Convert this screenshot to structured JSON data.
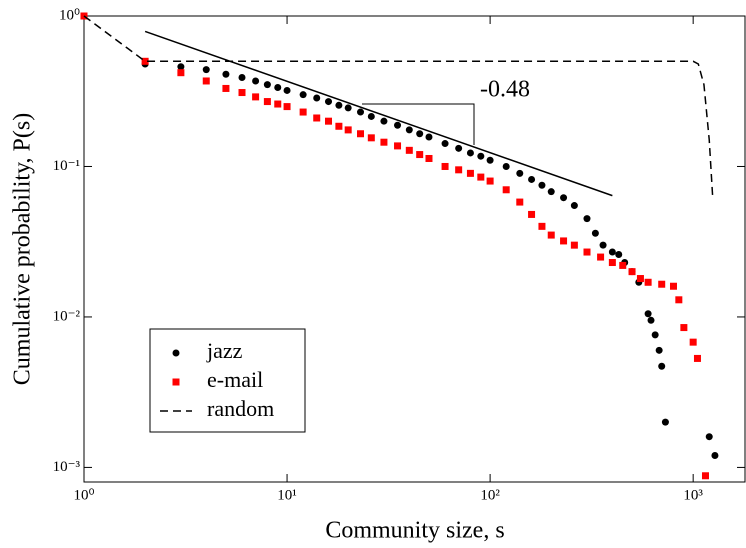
{
  "chart_data": {
    "type": "scatter",
    "xlabel": "Community size, s",
    "ylabel": "Cumulative probability, P(s)",
    "log_x": true,
    "log_y": true,
    "xlim": [
      1,
      1800
    ],
    "ylim": [
      0.0008,
      1
    ],
    "xticks": [
      {
        "value": 1,
        "label": "10⁰"
      },
      {
        "value": 10,
        "label": "10¹"
      },
      {
        "value": 100,
        "label": "10²"
      },
      {
        "value": 1000,
        "label": "10³"
      }
    ],
    "yticks": [
      {
        "value": 0.001,
        "label": "10⁻³"
      },
      {
        "value": 0.01,
        "label": "10⁻²"
      },
      {
        "value": 0.1,
        "label": "10⁻¹"
      },
      {
        "value": 1,
        "label": "10⁰"
      }
    ],
    "legend": "lower left",
    "series": [
      {
        "name": "jazz",
        "color": "#000000",
        "marker": "circle",
        "x": [
          1,
          2,
          3,
          4,
          5,
          6,
          7,
          8,
          9,
          10,
          12,
          14,
          16,
          18,
          20,
          23,
          26,
          30,
          35,
          40,
          45,
          50,
          60,
          70,
          80,
          90,
          100,
          120,
          140,
          160,
          180,
          200,
          230,
          260,
          300,
          330,
          360,
          400,
          430,
          460,
          500,
          540,
          600,
          620,
          650,
          680,
          700,
          730,
          1200,
          1280
        ],
        "values": [
          1,
          0.48,
          0.46,
          0.44,
          0.41,
          0.39,
          0.37,
          0.35,
          0.335,
          0.32,
          0.3,
          0.285,
          0.27,
          0.255,
          0.245,
          0.23,
          0.215,
          0.2,
          0.188,
          0.175,
          0.165,
          0.157,
          0.142,
          0.132,
          0.123,
          0.117,
          0.11,
          0.1,
          0.09,
          0.082,
          0.075,
          0.068,
          0.062,
          0.055,
          0.045,
          0.036,
          0.03,
          0.027,
          0.026,
          0.023,
          0.02,
          0.017,
          0.0105,
          0.0095,
          0.0076,
          0.006,
          0.0047,
          0.002,
          0.0016,
          0.0012
        ]
      },
      {
        "name": "e-mail",
        "color": "#ff0000",
        "marker": "square",
        "x": [
          1,
          2,
          3,
          4,
          5,
          6,
          7,
          8,
          9,
          10,
          12,
          14,
          16,
          18,
          20,
          23,
          26,
          30,
          35,
          40,
          45,
          50,
          60,
          70,
          80,
          90,
          100,
          120,
          140,
          160,
          180,
          200,
          230,
          260,
          300,
          350,
          400,
          450,
          500,
          550,
          600,
          700,
          800,
          850,
          900,
          1000,
          1050,
          1150
        ],
        "values": [
          1,
          0.5,
          0.42,
          0.37,
          0.33,
          0.31,
          0.29,
          0.27,
          0.26,
          0.25,
          0.23,
          0.21,
          0.2,
          0.185,
          0.175,
          0.165,
          0.155,
          0.145,
          0.137,
          0.128,
          0.12,
          0.113,
          0.1,
          0.095,
          0.09,
          0.085,
          0.08,
          0.07,
          0.058,
          0.048,
          0.04,
          0.035,
          0.032,
          0.03,
          0.027,
          0.025,
          0.023,
          0.022,
          0.02,
          0.018,
          0.017,
          0.0165,
          0.016,
          0.013,
          0.0085,
          0.0068,
          0.0053,
          0.00088
        ]
      },
      {
        "name": "random",
        "color": "#000000",
        "marker": "dashed-line",
        "x": [
          1,
          2,
          1000,
          1060,
          1130,
          1200,
          1250
        ],
        "values": [
          1,
          0.5,
          0.5,
          0.48,
          0.35,
          0.15,
          0.06
        ]
      }
    ],
    "fit_line": {
      "x": [
        2,
        400
      ],
      "values": [
        0.79,
        0.064
      ],
      "color": "#000000"
    },
    "annotation": "-0.48"
  }
}
